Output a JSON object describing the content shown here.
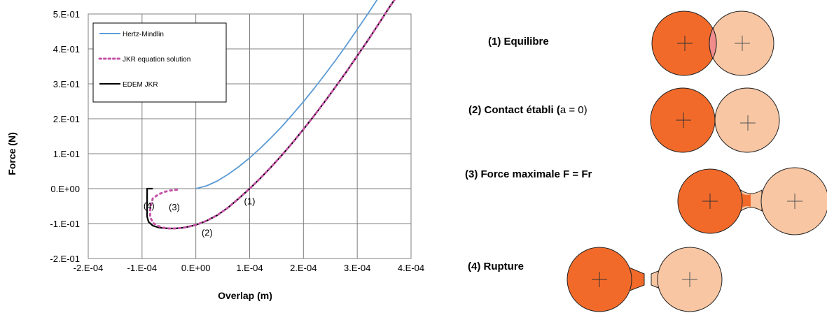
{
  "chart_data": {
    "type": "line",
    "xlabel": "Overlap (m)",
    "ylabel": "Force (N)",
    "xlim": [
      -0.0002,
      0.0004
    ],
    "ylim": [
      -0.2,
      0.5
    ],
    "xticks": [
      -0.0002,
      -0.0001,
      0.0,
      0.0001,
      0.0002,
      0.0003,
      0.0004
    ],
    "xtick_labels": [
      "-2.E-04",
      "-1.E-04",
      "0.E+00",
      "1.E-04",
      "2.E-04",
      "3.E-04",
      "4.E-04"
    ],
    "yticks": [
      0.5,
      0.4,
      0.3,
      0.2,
      0.1,
      0.0,
      -0.1,
      -0.2
    ],
    "ytick_labels": [
      "5.E-01",
      "4.E-01",
      "3.E-01",
      "2.E-01",
      "1.E-01",
      "0.E+00",
      "-1.E-01",
      "-2.E-01"
    ],
    "grid": true,
    "legend_position": "top-left",
    "series": [
      {
        "name": "Hertz-Mindlin",
        "color": "#5b9bd5",
        "style": "solid",
        "x": [
          0.0,
          2e-05,
          4e-05,
          6e-05,
          8e-05,
          0.0001,
          0.00012,
          0.00014,
          0.00016,
          0.00018,
          0.0002,
          0.00022,
          0.00024,
          0.00026,
          0.00028,
          0.0003,
          0.00032,
          0.00034,
          0.000355
        ],
        "y": [
          0.0,
          0.008,
          0.022,
          0.041,
          0.063,
          0.088,
          0.116,
          0.146,
          0.178,
          0.213,
          0.249,
          0.287,
          0.327,
          0.368,
          0.411,
          0.456,
          0.501,
          0.548,
          0.585
        ]
      },
      {
        "name": "JKR equation solution",
        "color": "#c653a8",
        "style": "dotted",
        "x": [
          -3.5e-05,
          -5e-05,
          -6e-05,
          -7e-05,
          -8e-05,
          -8.3e-05,
          -8.5e-05,
          -8.5e-05,
          -8e-05,
          -7e-05,
          -6e-05,
          -5e-05,
          -4e-05,
          -3e-05,
          -2e-05,
          0.0,
          2e-05,
          4e-05,
          6e-05,
          8e-05,
          0.0001,
          0.00012,
          0.00014,
          0.00016,
          0.00018,
          0.0002,
          0.00022,
          0.00024,
          0.00026,
          0.00028,
          0.0003,
          0.00032,
          0.00034,
          0.00036,
          0.000378
        ],
        "y": [
          -0.003,
          -0.006,
          -0.01,
          -0.017,
          -0.028,
          -0.045,
          -0.06,
          -0.08,
          -0.098,
          -0.107,
          -0.112,
          -0.114,
          -0.114,
          -0.113,
          -0.111,
          -0.104,
          -0.092,
          -0.076,
          -0.054,
          -0.028,
          0.0,
          0.03,
          0.062,
          0.096,
          0.132,
          0.17,
          0.209,
          0.25,
          0.292,
          0.335,
          0.38,
          0.425,
          0.472,
          0.52,
          0.56
        ]
      },
      {
        "name": "EDEM JKR",
        "color": "#000000",
        "style": "solid",
        "x": [
          -8e-05,
          -9.05e-05,
          -9.05e-05,
          -8.8e-05,
          -8e-05,
          -7e-05,
          -6e-05,
          -5e-05,
          -4e-05,
          -3e-05,
          -2e-05,
          0.0,
          2e-05,
          4e-05,
          6e-05,
          8e-05,
          0.0001,
          0.00012,
          0.00014,
          0.00016,
          0.00018,
          0.0002,
          0.00022,
          0.00024,
          0.00026,
          0.00028,
          0.0003,
          0.00032,
          0.00034,
          0.00036,
          0.000378
        ],
        "y": [
          0.0,
          0.0,
          -0.08,
          -0.095,
          -0.106,
          -0.111,
          -0.113,
          -0.114,
          -0.114,
          -0.113,
          -0.111,
          -0.104,
          -0.092,
          -0.076,
          -0.054,
          -0.028,
          0.0,
          0.03,
          0.062,
          0.096,
          0.132,
          0.17,
          0.209,
          0.25,
          0.292,
          0.335,
          0.38,
          0.425,
          0.472,
          0.52,
          0.56
        ]
      }
    ],
    "annotations": [
      {
        "label": "(1)",
        "x": 0.0001,
        "y": -0.045
      },
      {
        "label": "(2)",
        "x": 2.1e-05,
        "y": -0.135
      },
      {
        "label": "(3)",
        "x": -4e-05,
        "y": -0.062
      },
      {
        "label": "(4)",
        "x": -8.7e-05,
        "y": -0.058
      }
    ]
  },
  "stages": [
    {
      "title": "(1) Equilibre",
      "title_suffix": "",
      "state": "overlap"
    },
    {
      "title": "(2) Contact établi (",
      "title_suffix": "a = 0)",
      "state": "touching"
    },
    {
      "title": "(3) Force maximale F = Fr",
      "title_suffix": "",
      "state": "neck"
    },
    {
      "title": "(4) Rupture",
      "title_suffix": "",
      "state": "rupture"
    }
  ],
  "colors": {
    "particle_dark": "#f26a2a",
    "particle_light": "#f8c6a3",
    "overlap_zone": "#f08c8c",
    "outline": "#222222"
  }
}
